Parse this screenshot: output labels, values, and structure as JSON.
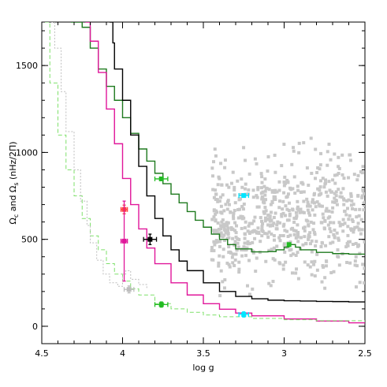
{
  "chart_data": {
    "type": "scatter",
    "xlabel": "log g",
    "ylabel": "Ω",
    "ylabel_sub1": "c",
    "ylabel_mid": " and ",
    "ylabel_sym2": "Ω",
    "ylabel_sub2": "s",
    "ylabel_units": " (nHz/2Π)",
    "xlim": [
      4.5,
      2.5
    ],
    "ylim": [
      -100,
      1750
    ],
    "x_ticks": [
      4.5,
      4,
      3.5,
      3,
      2.5
    ],
    "x_tick_labels": [
      "4.5",
      "4",
      "3.5",
      "3",
      "2.5"
    ],
    "y_ticks": [
      0,
      500,
      1000,
      1500
    ],
    "y_tick_labels": [
      "0",
      "500",
      "1000",
      "1500"
    ],
    "colors": {
      "dark_green": "#1e7a1e",
      "black": "#000000",
      "magenta": "#e0169a",
      "light_green": "#7ee06a",
      "light_gray": "#bdbdbd",
      "red": "#ff4040",
      "cyan": "#00e5ff",
      "green_marker": "#22bb22",
      "scatter": "#c8c8c8"
    },
    "curves": [
      {
        "color": "dark_green",
        "style": "solid",
        "points": [
          [
            4.32,
            1750
          ],
          [
            4.25,
            1720
          ],
          [
            4.2,
            1600
          ],
          [
            4.15,
            1480
          ],
          [
            4.1,
            1380
          ],
          [
            4.05,
            1300
          ],
          [
            4.0,
            1200
          ],
          [
            3.95,
            1110
          ],
          [
            3.9,
            1020
          ],
          [
            3.85,
            950
          ],
          [
            3.8,
            880
          ],
          [
            3.75,
            820
          ],
          [
            3.7,
            760
          ],
          [
            3.65,
            710
          ],
          [
            3.6,
            660
          ],
          [
            3.55,
            610
          ],
          [
            3.5,
            570
          ],
          [
            3.45,
            530
          ],
          [
            3.4,
            500
          ],
          [
            3.35,
            470
          ],
          [
            3.3,
            445
          ],
          [
            3.2,
            428
          ],
          [
            3.1,
            430
          ],
          [
            3.05,
            440
          ],
          [
            3.0,
            455
          ],
          [
            2.97,
            470
          ],
          [
            2.93,
            455
          ],
          [
            2.9,
            440
          ],
          [
            2.8,
            425
          ],
          [
            2.7,
            418
          ],
          [
            2.6,
            415
          ],
          [
            2.5,
            413
          ]
        ]
      },
      {
        "color": "black",
        "style": "solid",
        "points": [
          [
            4.08,
            1750
          ],
          [
            4.06,
            1630
          ],
          [
            4.05,
            1480
          ],
          [
            4.0,
            1300
          ],
          [
            3.95,
            1100
          ],
          [
            3.9,
            920
          ],
          [
            3.85,
            750
          ],
          [
            3.8,
            620
          ],
          [
            3.75,
            520
          ],
          [
            3.7,
            440
          ],
          [
            3.65,
            375
          ],
          [
            3.6,
            320
          ],
          [
            3.5,
            250
          ],
          [
            3.4,
            200
          ],
          [
            3.3,
            172
          ],
          [
            3.2,
            158
          ],
          [
            3.1,
            150
          ],
          [
            3.0,
            147
          ],
          [
            2.9,
            145
          ],
          [
            2.8,
            143
          ],
          [
            2.7,
            142
          ],
          [
            2.6,
            140
          ],
          [
            2.5,
            137
          ]
        ]
      },
      {
        "color": "magenta",
        "style": "solid",
        "points": [
          [
            4.23,
            1750
          ],
          [
            4.2,
            1640
          ],
          [
            4.15,
            1460
          ],
          [
            4.1,
            1250
          ],
          [
            4.05,
            1050
          ],
          [
            4.0,
            850
          ],
          [
            3.95,
            700
          ],
          [
            3.9,
            560
          ],
          [
            3.85,
            450
          ],
          [
            3.8,
            360
          ],
          [
            3.7,
            250
          ],
          [
            3.6,
            180
          ],
          [
            3.5,
            130
          ],
          [
            3.4,
            98
          ],
          [
            3.3,
            76
          ],
          [
            3.2,
            60
          ],
          [
            3.0,
            42
          ],
          [
            2.8,
            30
          ],
          [
            2.6,
            20
          ],
          [
            2.5,
            17
          ]
        ]
      },
      {
        "color": "light_green",
        "style": "dashed",
        "points": [
          [
            4.48,
            1750
          ],
          [
            4.45,
            1400
          ],
          [
            4.4,
            1100
          ],
          [
            4.35,
            900
          ],
          [
            4.3,
            750
          ],
          [
            4.25,
            620
          ],
          [
            4.2,
            520
          ],
          [
            4.15,
            440
          ],
          [
            4.1,
            360
          ],
          [
            4.05,
            300
          ],
          [
            4.0,
            260
          ],
          [
            3.95,
            215
          ],
          [
            3.9,
            180
          ],
          [
            3.8,
            130
          ],
          [
            3.7,
            100
          ],
          [
            3.6,
            80
          ],
          [
            3.5,
            65
          ],
          [
            3.4,
            55
          ],
          [
            3.2,
            45
          ],
          [
            3.0,
            38
          ],
          [
            2.8,
            32
          ],
          [
            2.5,
            26
          ]
        ]
      },
      {
        "color": "light_gray",
        "style": "dotted",
        "points": [
          [
            4.44,
            1750
          ],
          [
            4.42,
            1600
          ],
          [
            4.38,
            1350
          ],
          [
            4.35,
            1120
          ],
          [
            4.3,
            900
          ],
          [
            4.26,
            720
          ],
          [
            4.22,
            580
          ],
          [
            4.2,
            480
          ],
          [
            4.16,
            380
          ],
          [
            4.12,
            300
          ],
          [
            4.08,
            250
          ],
          [
            4.03,
            230
          ],
          [
            4.0,
            300
          ],
          [
            3.98,
            320
          ],
          [
            3.95,
            270
          ],
          [
            3.9,
            240
          ],
          [
            3.85,
            215
          ]
        ]
      }
    ],
    "markers": [
      {
        "x": 3.76,
        "y": 848,
        "xerr": 0.04,
        "yerr": 10,
        "color": "green_marker"
      },
      {
        "x": 3.25,
        "y": 752,
        "xerr": 0.03,
        "yerr": 10,
        "color": "cyan"
      },
      {
        "x": 3.99,
        "y": 672,
        "xerr": 0.02,
        "yerr": 25,
        "color": "red"
      },
      {
        "x": 3.99,
        "y": 490,
        "xerr": 0.02,
        "yerr": 230,
        "color": "magenta"
      },
      {
        "x": 3.83,
        "y": 500,
        "xerr": 0.04,
        "yerr": 30,
        "color": "black"
      },
      {
        "x": 3.96,
        "y": 212,
        "xerr": 0.03,
        "yerr": 20,
        "color": "light_gray"
      },
      {
        "x": 3.76,
        "y": 125,
        "xerr": 0.04,
        "yerr": 15,
        "color": "green_marker"
      },
      {
        "x": 3.25,
        "y": 68,
        "xerr": 0.03,
        "yerr": 15,
        "color": "cyan"
      },
      {
        "x": 2.97,
        "y": 470,
        "xerr": 0.0,
        "yerr": 0,
        "color": "green_marker"
      }
    ],
    "scatter": {
      "color": "scatter",
      "count": 700,
      "x_range": [
        2.5,
        3.45
      ],
      "y_range": [
        150,
        1680
      ],
      "y_center": 620,
      "y_spread": 300
    }
  }
}
